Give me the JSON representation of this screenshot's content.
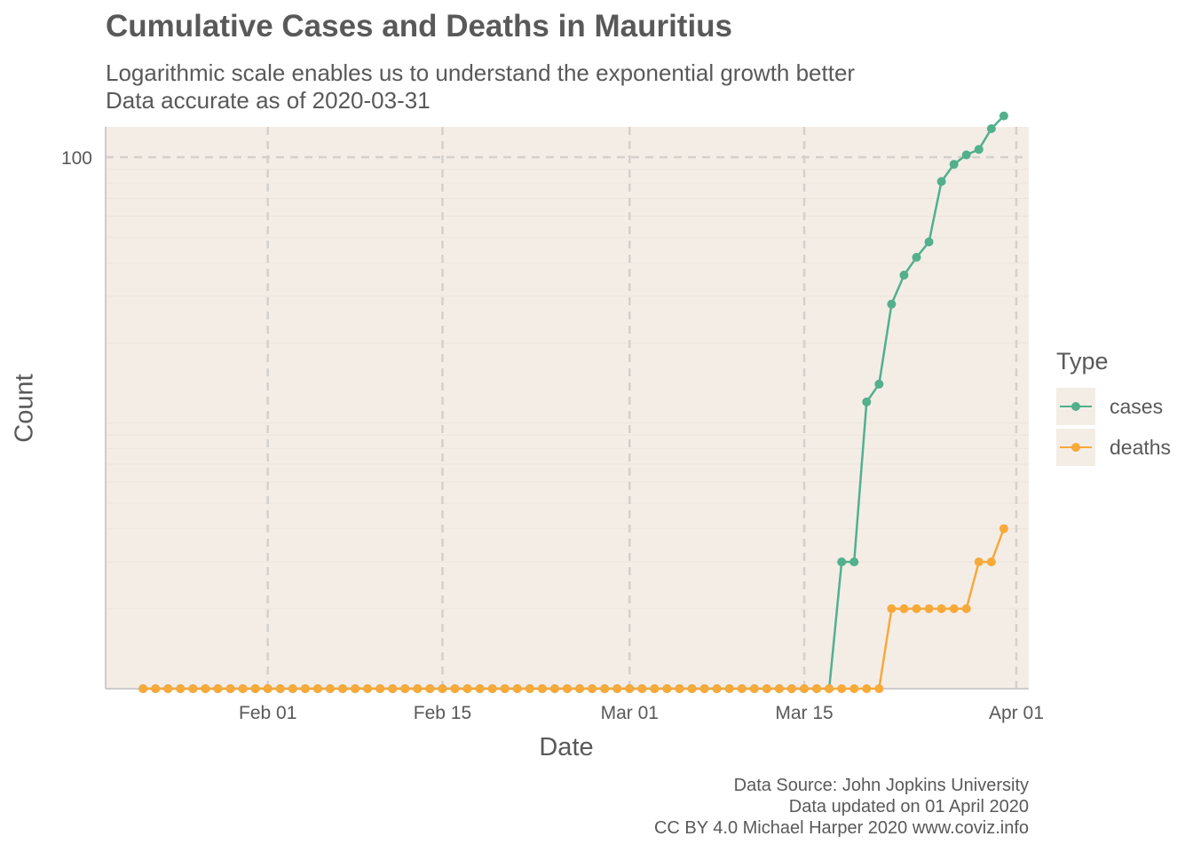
{
  "title": "Cumulative Cases and Deaths in Mauritius",
  "subtitle_line1": "Logarithmic scale enables us to understand the exponential growth better",
  "subtitle_line2": "Data accurate as of 2020-03-31",
  "caption_line1": "Data Source: John Jopkins University",
  "caption_line2": "Data updated on 01 April 2020",
  "caption_line3": "CC BY 4.0 Michael Harper 2020 www.coviz.info",
  "colors": {
    "panel": "#f3ede6",
    "grid": "#d4d0cc",
    "cases": "#52b08c",
    "deaths": "#f7a93a",
    "text": "#595959"
  },
  "chart_data": {
    "type": "line",
    "xlabel": "Date",
    "ylabel": "Count",
    "y_scale": "log10",
    "ylim": [
      1,
      130
    ],
    "xlim": [
      "2020-01-19",
      "2020-04-02"
    ],
    "x_ticks": [
      {
        "date": "2020-02-01",
        "label": "Feb 01"
      },
      {
        "date": "2020-02-15",
        "label": "Feb 15"
      },
      {
        "date": "2020-03-01",
        "label": "Mar 01"
      },
      {
        "date": "2020-03-15",
        "label": "Mar 15"
      },
      {
        "date": "2020-04-01",
        "label": "Apr 01"
      }
    ],
    "y_ticks": [
      {
        "value": 100,
        "label": "100"
      }
    ],
    "grid": true,
    "legend_title": "Type",
    "legend_position": "right",
    "x": [
      "2020-01-22",
      "2020-01-23",
      "2020-01-24",
      "2020-01-25",
      "2020-01-26",
      "2020-01-27",
      "2020-01-28",
      "2020-01-29",
      "2020-01-30",
      "2020-01-31",
      "2020-02-01",
      "2020-02-02",
      "2020-02-03",
      "2020-02-04",
      "2020-02-05",
      "2020-02-06",
      "2020-02-07",
      "2020-02-08",
      "2020-02-09",
      "2020-02-10",
      "2020-02-11",
      "2020-02-12",
      "2020-02-13",
      "2020-02-14",
      "2020-02-15",
      "2020-02-16",
      "2020-02-17",
      "2020-02-18",
      "2020-02-19",
      "2020-02-20",
      "2020-02-21",
      "2020-02-22",
      "2020-02-23",
      "2020-02-24",
      "2020-02-25",
      "2020-02-26",
      "2020-02-27",
      "2020-02-28",
      "2020-02-29",
      "2020-03-01",
      "2020-03-02",
      "2020-03-03",
      "2020-03-04",
      "2020-03-05",
      "2020-03-06",
      "2020-03-07",
      "2020-03-08",
      "2020-03-09",
      "2020-03-10",
      "2020-03-11",
      "2020-03-12",
      "2020-03-13",
      "2020-03-14",
      "2020-03-15",
      "2020-03-16",
      "2020-03-17",
      "2020-03-18",
      "2020-03-19",
      "2020-03-20",
      "2020-03-21",
      "2020-03-22",
      "2020-03-23",
      "2020-03-24",
      "2020-03-25",
      "2020-03-26",
      "2020-03-27",
      "2020-03-28",
      "2020-03-29",
      "2020-03-30",
      "2020-03-31"
    ],
    "series": [
      {
        "name": "cases",
        "values": [
          0,
          0,
          0,
          0,
          0,
          0,
          0,
          0,
          0,
          0,
          0,
          0,
          0,
          0,
          0,
          0,
          0,
          0,
          0,
          0,
          0,
          0,
          0,
          0,
          0,
          0,
          0,
          0,
          0,
          0,
          0,
          0,
          0,
          0,
          0,
          0,
          0,
          0,
          0,
          0,
          0,
          0,
          0,
          0,
          0,
          0,
          0,
          0,
          0,
          0,
          0,
          0,
          0,
          0,
          0,
          0,
          3,
          3,
          12,
          14,
          28,
          36,
          42,
          48,
          81,
          94,
          102,
          107,
          128,
          143
        ]
      },
      {
        "name": "deaths",
        "values": [
          0,
          0,
          0,
          0,
          0,
          0,
          0,
          0,
          0,
          0,
          0,
          0,
          0,
          0,
          0,
          0,
          0,
          0,
          0,
          0,
          0,
          0,
          0,
          0,
          0,
          0,
          0,
          0,
          0,
          0,
          0,
          0,
          0,
          0,
          0,
          0,
          0,
          0,
          0,
          0,
          0,
          0,
          0,
          0,
          0,
          0,
          0,
          0,
          0,
          0,
          0,
          0,
          0,
          0,
          0,
          0,
          0,
          0,
          0,
          1,
          2,
          2,
          2,
          2,
          2,
          2,
          2,
          3,
          3,
          4
        ]
      }
    ]
  }
}
